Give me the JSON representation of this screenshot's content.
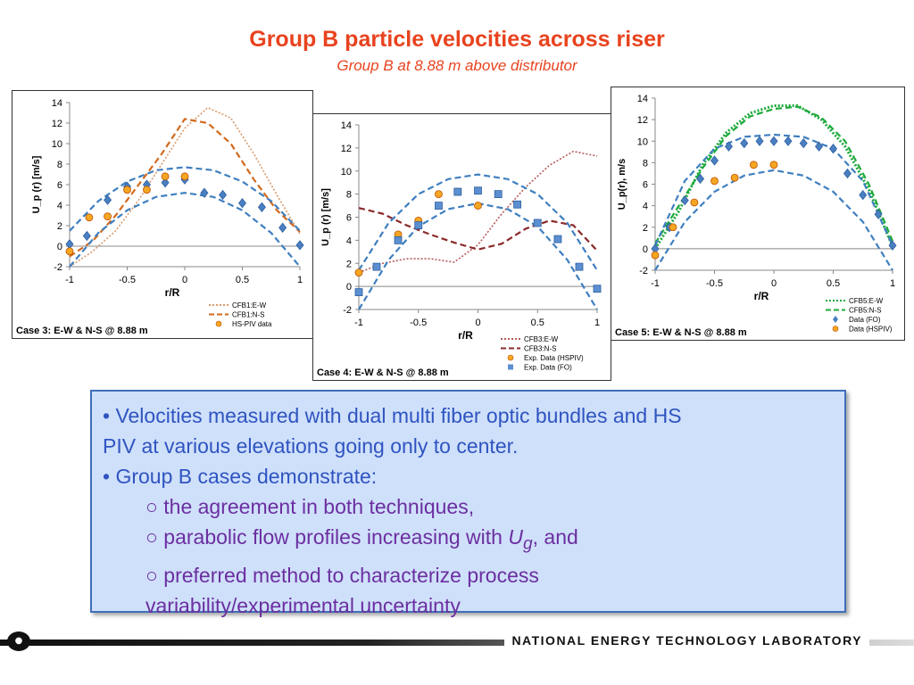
{
  "title": "Group B particle velocities across riser",
  "subtitle": "Group B at 8.88 m above distributor",
  "bullets": {
    "b1_line1": "• Velocities measured with dual multi fiber optic bundles and HS",
    "b1_line2": "PIV at various elevations going only to center.",
    "b2": "• Group B cases demonstrate:",
    "s1": "○ the agreement in both techniques,",
    "s2_pre": "○ parabolic flow profiles increasing with ",
    "s2_var": "U",
    "s2_sub": "g",
    "s2_post": ", and",
    "s3_line1": "○ preferred method to characterize process",
    "s3_line2": "variability/experimental uncertainty"
  },
  "footer": {
    "org": "NATIONAL ENERGY TECHNOLOGY LABORATORY",
    "logo_icon": "netl-logo-icon"
  },
  "chart_data": [
    {
      "id": "case3",
      "type": "line",
      "caption": "Case 3: E-W & N-S @ 8.88 m",
      "xlabel": "r/R",
      "ylabel": "U_p (r) [m/s]",
      "xlim": [
        -1,
        1
      ],
      "ylim": [
        -2,
        14
      ],
      "xticks": [
        -1,
        -0.5,
        0,
        0.5,
        1
      ],
      "xtick_labels": [
        "-1",
        "-0.5",
        "0",
        "0.5",
        "1"
      ],
      "yticks": [
        -2,
        0,
        2,
        4,
        6,
        8,
        10,
        12,
        14
      ],
      "ytick_labels": [
        "-2",
        "0",
        "2",
        "4",
        "6",
        "8",
        "10",
        "12",
        "14"
      ],
      "series": [
        {
          "name": "CFB1:E-W",
          "kind": "line",
          "style": "dotted",
          "color": "#d99a6c",
          "x": [
            -1,
            -0.8,
            -0.6,
            -0.4,
            -0.2,
            0,
            0.2,
            0.4,
            0.6,
            0.8,
            1
          ],
          "y": [
            -2,
            -0.5,
            1.5,
            4.5,
            8,
            11.5,
            13.5,
            12.5,
            9,
            5,
            1.2
          ]
        },
        {
          "name": "CFB1:N-S",
          "kind": "line",
          "style": "dashed",
          "color": "#d26a1e",
          "x": [
            -1,
            -0.8,
            -0.6,
            -0.4,
            -0.2,
            0,
            0.2,
            0.4,
            0.6,
            0.8,
            1
          ],
          "y": [
            -1,
            0.5,
            3,
            6,
            9,
            12.4,
            12,
            10,
            6.5,
            3.5,
            1.4
          ]
        },
        {
          "name": "",
          "kind": "line",
          "style": "dashed",
          "color": "#3f7fbf",
          "x": [
            -1,
            -0.75,
            -0.5,
            -0.25,
            0,
            0.25,
            0.5,
            0.75,
            1
          ],
          "y": [
            1.5,
            4.4,
            6.3,
            7.4,
            7.7,
            7.4,
            6.3,
            4.4,
            1.5
          ]
        },
        {
          "name": "",
          "kind": "line",
          "style": "dashed",
          "color": "#3f7fbf",
          "x": [
            -1,
            -0.75,
            -0.5,
            -0.25,
            0,
            0.25,
            0.5,
            0.75,
            1
          ],
          "y": [
            -2,
            1.3,
            3.5,
            4.8,
            5.2,
            4.8,
            3.5,
            1.3,
            -2
          ]
        },
        {
          "name": "",
          "kind": "marker",
          "marker": "diamond",
          "color": "#4a7fc1",
          "x": [
            -1,
            -0.85,
            -0.67,
            -0.5,
            -0.33,
            -0.17,
            0,
            0.17,
            0.33,
            0.5,
            0.67,
            0.85,
            1
          ],
          "y": [
            0.2,
            1,
            4.5,
            5.8,
            6,
            6.2,
            6.5,
            5.2,
            5,
            4.2,
            3.8,
            1.8,
            0.1
          ]
        },
        {
          "name": "HS-PIV data",
          "kind": "marker",
          "marker": "circle",
          "color": "#f5a623",
          "x": [
            -1,
            -0.83,
            -0.67,
            -0.5,
            -0.33,
            -0.17,
            0
          ],
          "y": [
            -0.5,
            2.8,
            2.9,
            5.5,
            5.5,
            6.8,
            6.8
          ]
        }
      ]
    },
    {
      "id": "case4",
      "type": "line",
      "caption": "Case 4: E-W & N-S @ 8.88 m",
      "xlabel": "r/R",
      "ylabel": "U_p (r) [m/s]",
      "xlim": [
        -1,
        1
      ],
      "ylim": [
        -2,
        14
      ],
      "xticks": [
        -1,
        -0.5,
        0,
        0.5,
        1
      ],
      "xtick_labels": [
        "-1",
        "-0.5",
        "0",
        "0.5",
        "1"
      ],
      "yticks": [
        -2,
        0,
        2,
        4,
        6,
        8,
        10,
        12,
        14
      ],
      "ytick_labels": [
        "-2",
        "0",
        "2",
        "4",
        "6",
        "8",
        "10",
        "12",
        "14"
      ],
      "series": [
        {
          "name": "CFB3:E-W",
          "kind": "line",
          "style": "dotted",
          "color": "#b45a5a",
          "x": [
            -1,
            -0.8,
            -0.6,
            -0.4,
            -0.2,
            0,
            0.2,
            0.4,
            0.6,
            0.8,
            1
          ],
          "y": [
            1.2,
            2,
            2.4,
            2.4,
            2.1,
            3.6,
            6.3,
            8.6,
            10.5,
            11.7,
            11.3
          ]
        },
        {
          "name": "CFB3:N-S",
          "kind": "line",
          "style": "dashed",
          "color": "#8b2a2a",
          "x": [
            -1,
            -0.8,
            -0.6,
            -0.4,
            -0.2,
            0,
            0.2,
            0.4,
            0.6,
            0.8,
            1
          ],
          "y": [
            6.8,
            6.3,
            5.3,
            4.5,
            3.8,
            3.2,
            3.7,
            5,
            5.7,
            5.3,
            3.1
          ]
        },
        {
          "name": "",
          "kind": "line",
          "style": "dashed",
          "color": "#3f7fbf",
          "x": [
            -1,
            -0.75,
            -0.5,
            -0.25,
            0,
            0.25,
            0.5,
            0.75,
            1
          ],
          "y": [
            1.4,
            5.5,
            8,
            9.3,
            9.7,
            9.3,
            8,
            5.5,
            1.4
          ]
        },
        {
          "name": "",
          "kind": "line",
          "style": "dashed",
          "color": "#3f7fbf",
          "x": [
            -1,
            -0.75,
            -0.5,
            -0.25,
            0,
            0.25,
            0.5,
            0.75,
            1
          ],
          "y": [
            -2,
            2.3,
            5.2,
            6.7,
            7.2,
            6.7,
            5.2,
            2.3,
            -2
          ]
        },
        {
          "name": "Exp. Data (HSPIV)",
          "kind": "marker",
          "marker": "circle",
          "color": "#f5a623",
          "x": [
            -1,
            -0.67,
            -0.5,
            -0.33,
            -0.17,
            0
          ],
          "y": [
            1.2,
            4.5,
            5.7,
            8,
            8.2,
            7
          ]
        },
        {
          "name": "Exp. Data (FO)",
          "kind": "marker",
          "marker": "square",
          "color": "#5b8fd1",
          "x": [
            -1,
            -0.85,
            -0.67,
            -0.5,
            -0.33,
            -0.17,
            0,
            0.17,
            0.33,
            0.5,
            0.67,
            0.85,
            1
          ],
          "y": [
            -0.5,
            1.7,
            4,
            5.3,
            7,
            8.2,
            8.3,
            8,
            7.1,
            5.5,
            4.1,
            1.7,
            -0.2
          ]
        }
      ]
    },
    {
      "id": "case5",
      "type": "line",
      "caption": "Case 5: E-W & N-S @ 8.88 m",
      "xlabel": "r/R",
      "ylabel": "U_p(r), m/s",
      "xlim": [
        -1,
        1
      ],
      "ylim": [
        -2,
        14
      ],
      "xticks": [
        -1,
        -0.5,
        0,
        0.5,
        1
      ],
      "xtick_labels": [
        "-1",
        "-0.5",
        "0",
        "0.5",
        "1"
      ],
      "yticks": [
        -2,
        0,
        2,
        4,
        6,
        8,
        10,
        12,
        14
      ],
      "ytick_labels": [
        "-2",
        "0",
        "2",
        "4",
        "6",
        "8",
        "10",
        "12",
        "14"
      ],
      "series": [
        {
          "name": "CFB5:E-W",
          "kind": "line",
          "style": "dotted",
          "color": "#1eaa3c",
          "x": [
            -1,
            -0.8,
            -0.6,
            -0.4,
            -0.2,
            0,
            0.2,
            0.4,
            0.6,
            0.8,
            1
          ],
          "y": [
            0,
            3.5,
            7.8,
            10.8,
            12.6,
            13.3,
            13.3,
            12,
            9.5,
            5.5,
            0.2
          ]
        },
        {
          "name": "CFB5:N-S",
          "kind": "line",
          "style": "dashed",
          "color": "#1eaa3c",
          "x": [
            -1,
            -0.8,
            -0.6,
            -0.4,
            -0.2,
            0,
            0.2,
            0.4,
            0.6,
            0.8,
            1
          ],
          "y": [
            0.5,
            4,
            7.5,
            10.5,
            12.3,
            13,
            13.2,
            12.2,
            10,
            6,
            0.7
          ]
        },
        {
          "name": "",
          "kind": "line",
          "style": "dashed",
          "color": "#3f7fbf",
          "x": [
            -1,
            -0.75,
            -0.5,
            -0.25,
            0,
            0.25,
            0.5,
            0.75,
            1
          ],
          "y": [
            0.3,
            6.3,
            9.3,
            10.4,
            10.6,
            10.4,
            9.3,
            6.3,
            0.3
          ]
        },
        {
          "name": "",
          "kind": "line",
          "style": "dashed",
          "color": "#3f7fbf",
          "x": [
            -1,
            -0.75,
            -0.5,
            -0.25,
            0,
            0.25,
            0.5,
            0.75,
            1
          ],
          "y": [
            -2,
            2.5,
            5.3,
            6.8,
            7.3,
            6.8,
            5.3,
            2.5,
            -2
          ]
        },
        {
          "name": "Data (FO)",
          "kind": "marker",
          "marker": "diamond",
          "color": "#4a7fc1",
          "x": [
            -1,
            -0.88,
            -0.75,
            -0.62,
            -0.5,
            -0.38,
            -0.25,
            -0.12,
            0,
            0.12,
            0.25,
            0.38,
            0.5,
            0.62,
            0.75,
            0.88,
            1
          ],
          "y": [
            0,
            2,
            4.5,
            6.5,
            8.2,
            9.5,
            9.8,
            10,
            10,
            10,
            9.8,
            9.5,
            9.3,
            7,
            5,
            3.2,
            0.3
          ]
        },
        {
          "name": "Data (HSPIV)",
          "kind": "marker",
          "marker": "circle",
          "color": "#f5a623",
          "x": [
            -1,
            -0.85,
            -0.67,
            -0.5,
            -0.33,
            -0.17,
            0
          ],
          "y": [
            -0.6,
            2,
            4.3,
            6.3,
            6.6,
            7.8,
            7.8
          ]
        }
      ]
    }
  ]
}
